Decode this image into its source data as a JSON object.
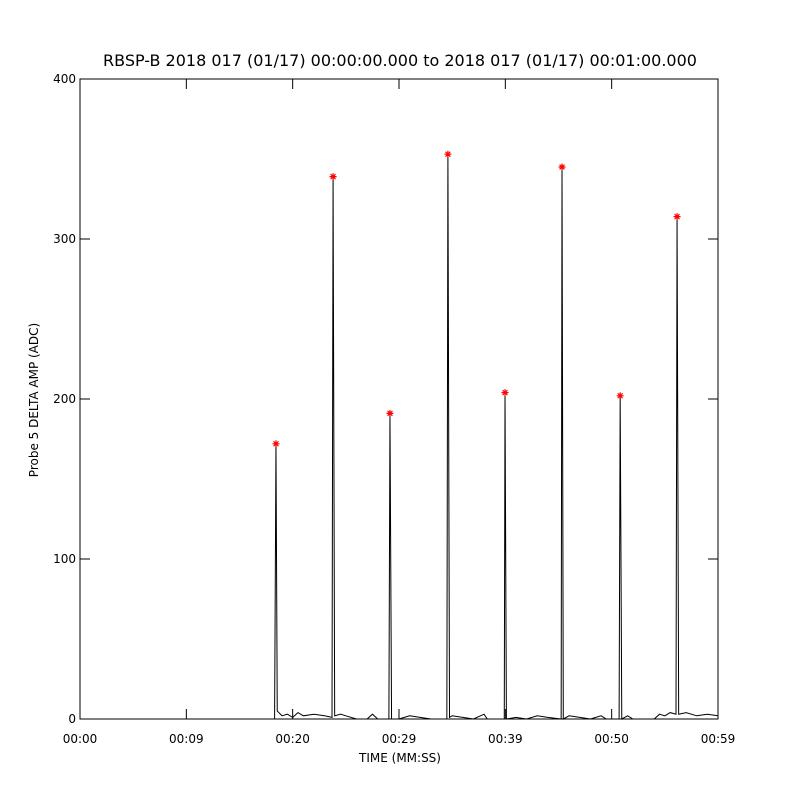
{
  "chart_data": {
    "type": "line",
    "title": "RBSP-B 2018 017 (01/17) 00:00:00.000 to 2018 017 (01/17) 00:01:00.000",
    "x_label": "TIME (MM:SS)",
    "y_label": "Probe 5 DELTA AMP (ADC)",
    "xlim": [
      0,
      60
    ],
    "xticks": [
      {
        "value": 0,
        "label": "00:00"
      },
      {
        "value": 10,
        "label": "00:09"
      },
      {
        "value": 20,
        "label": "00:20"
      },
      {
        "value": 30,
        "label": "00:29"
      },
      {
        "value": 40,
        "label": "00:39"
      },
      {
        "value": 50,
        "label": "00:50"
      },
      {
        "value": 60,
        "label": "00:59"
      }
    ],
    "ylim": [
      0,
      400
    ],
    "yticks": [
      0,
      100,
      200,
      300,
      400
    ],
    "series": [
      {
        "color": "#000000",
        "x": [
          0,
          18.3,
          18.43,
          18.55,
          19,
          19.5,
          20,
          20.5,
          21,
          22,
          23,
          23.7,
          23.8,
          23.95,
          24.5,
          25,
          26,
          27,
          27.5,
          28,
          29.05,
          29.15,
          29.3,
          30,
          31,
          32,
          33,
          34.5,
          34.6,
          34.75,
          35,
          36,
          37,
          38,
          38.3,
          39.9,
          39.97,
          40.1,
          41,
          42,
          43,
          44,
          45.25,
          45.33,
          45.45,
          46,
          47,
          48,
          49,
          49.5,
          50.7,
          50.8,
          50.95,
          51.5,
          52,
          54,
          54.5,
          55,
          55.5,
          56.05,
          56.15,
          56.3,
          57,
          58,
          59,
          60
        ],
        "values": [
          0,
          0,
          172,
          5,
          2,
          3,
          1,
          4,
          2,
          3,
          2,
          1,
          339,
          2,
          3,
          2,
          0,
          0,
          3,
          0,
          0,
          191,
          0,
          0,
          2,
          1,
          0,
          0,
          353,
          1,
          2,
          1,
          0,
          3,
          0,
          0,
          204,
          0,
          1,
          0,
          2,
          1,
          0,
          345,
          0,
          2,
          1,
          0,
          2,
          0,
          0,
          202,
          0,
          2,
          0,
          0,
          3,
          2,
          4,
          3,
          314,
          3,
          4,
          2,
          3,
          2
        ]
      },
      {
        "color": "#ff0000",
        "marker": "asterisk",
        "x": [
          18.43,
          23.8,
          29.15,
          34.6,
          39.97,
          45.33,
          50.8,
          56.15
        ],
        "values": [
          172,
          339,
          191,
          353,
          204,
          345,
          202,
          314
        ]
      }
    ]
  }
}
